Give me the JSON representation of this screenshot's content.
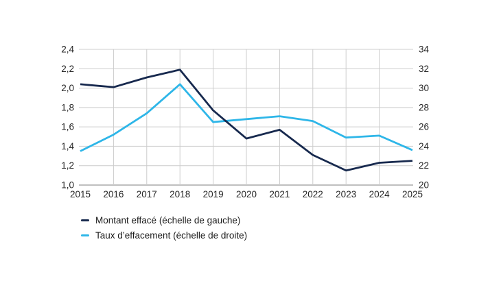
{
  "chart_data": {
    "type": "line",
    "x": [
      2015,
      2016,
      2017,
      2018,
      2019,
      2020,
      2021,
      2022,
      2023,
      2024,
      2025
    ],
    "x_tick_labels": [
      "2015",
      "2016",
      "2017",
      "2018",
      "2019",
      "2020",
      "2021",
      "2022",
      "2023",
      "2024",
      "2025"
    ],
    "left_axis": {
      "min": 1.0,
      "max": 2.4,
      "step": 0.2,
      "tick_labels": [
        "2,4",
        "2,2",
        "2,0",
        "1,8",
        "1,6",
        "1,4",
        "1,2",
        "1,0"
      ]
    },
    "right_axis": {
      "min": 20,
      "max": 34,
      "step": 2,
      "tick_labels": [
        "34",
        "32",
        "30",
        "28",
        "26",
        "24",
        "22",
        "20"
      ]
    },
    "series": [
      {
        "name": "Montant effacé (échelle de gauche)",
        "axis": "left",
        "color": "#17294e",
        "values": [
          2.04,
          2.01,
          2.11,
          2.19,
          1.77,
          1.48,
          1.57,
          1.31,
          1.15,
          1.23,
          1.25
        ]
      },
      {
        "name": "Taux d’effacement (échelle de droite)",
        "axis": "right",
        "color": "#2eb6e8",
        "values": [
          23.5,
          25.2,
          27.4,
          30.4,
          26.5,
          26.8,
          27.1,
          26.6,
          24.9,
          25.1,
          23.6
        ]
      }
    ],
    "grid": true,
    "grid_color": "#cccccc",
    "axis_line_color": "#7f7f7f",
    "text_color": "#262626",
    "title": "",
    "xlabel": "",
    "ylabel": "",
    "legend_position": "bottom-left"
  }
}
